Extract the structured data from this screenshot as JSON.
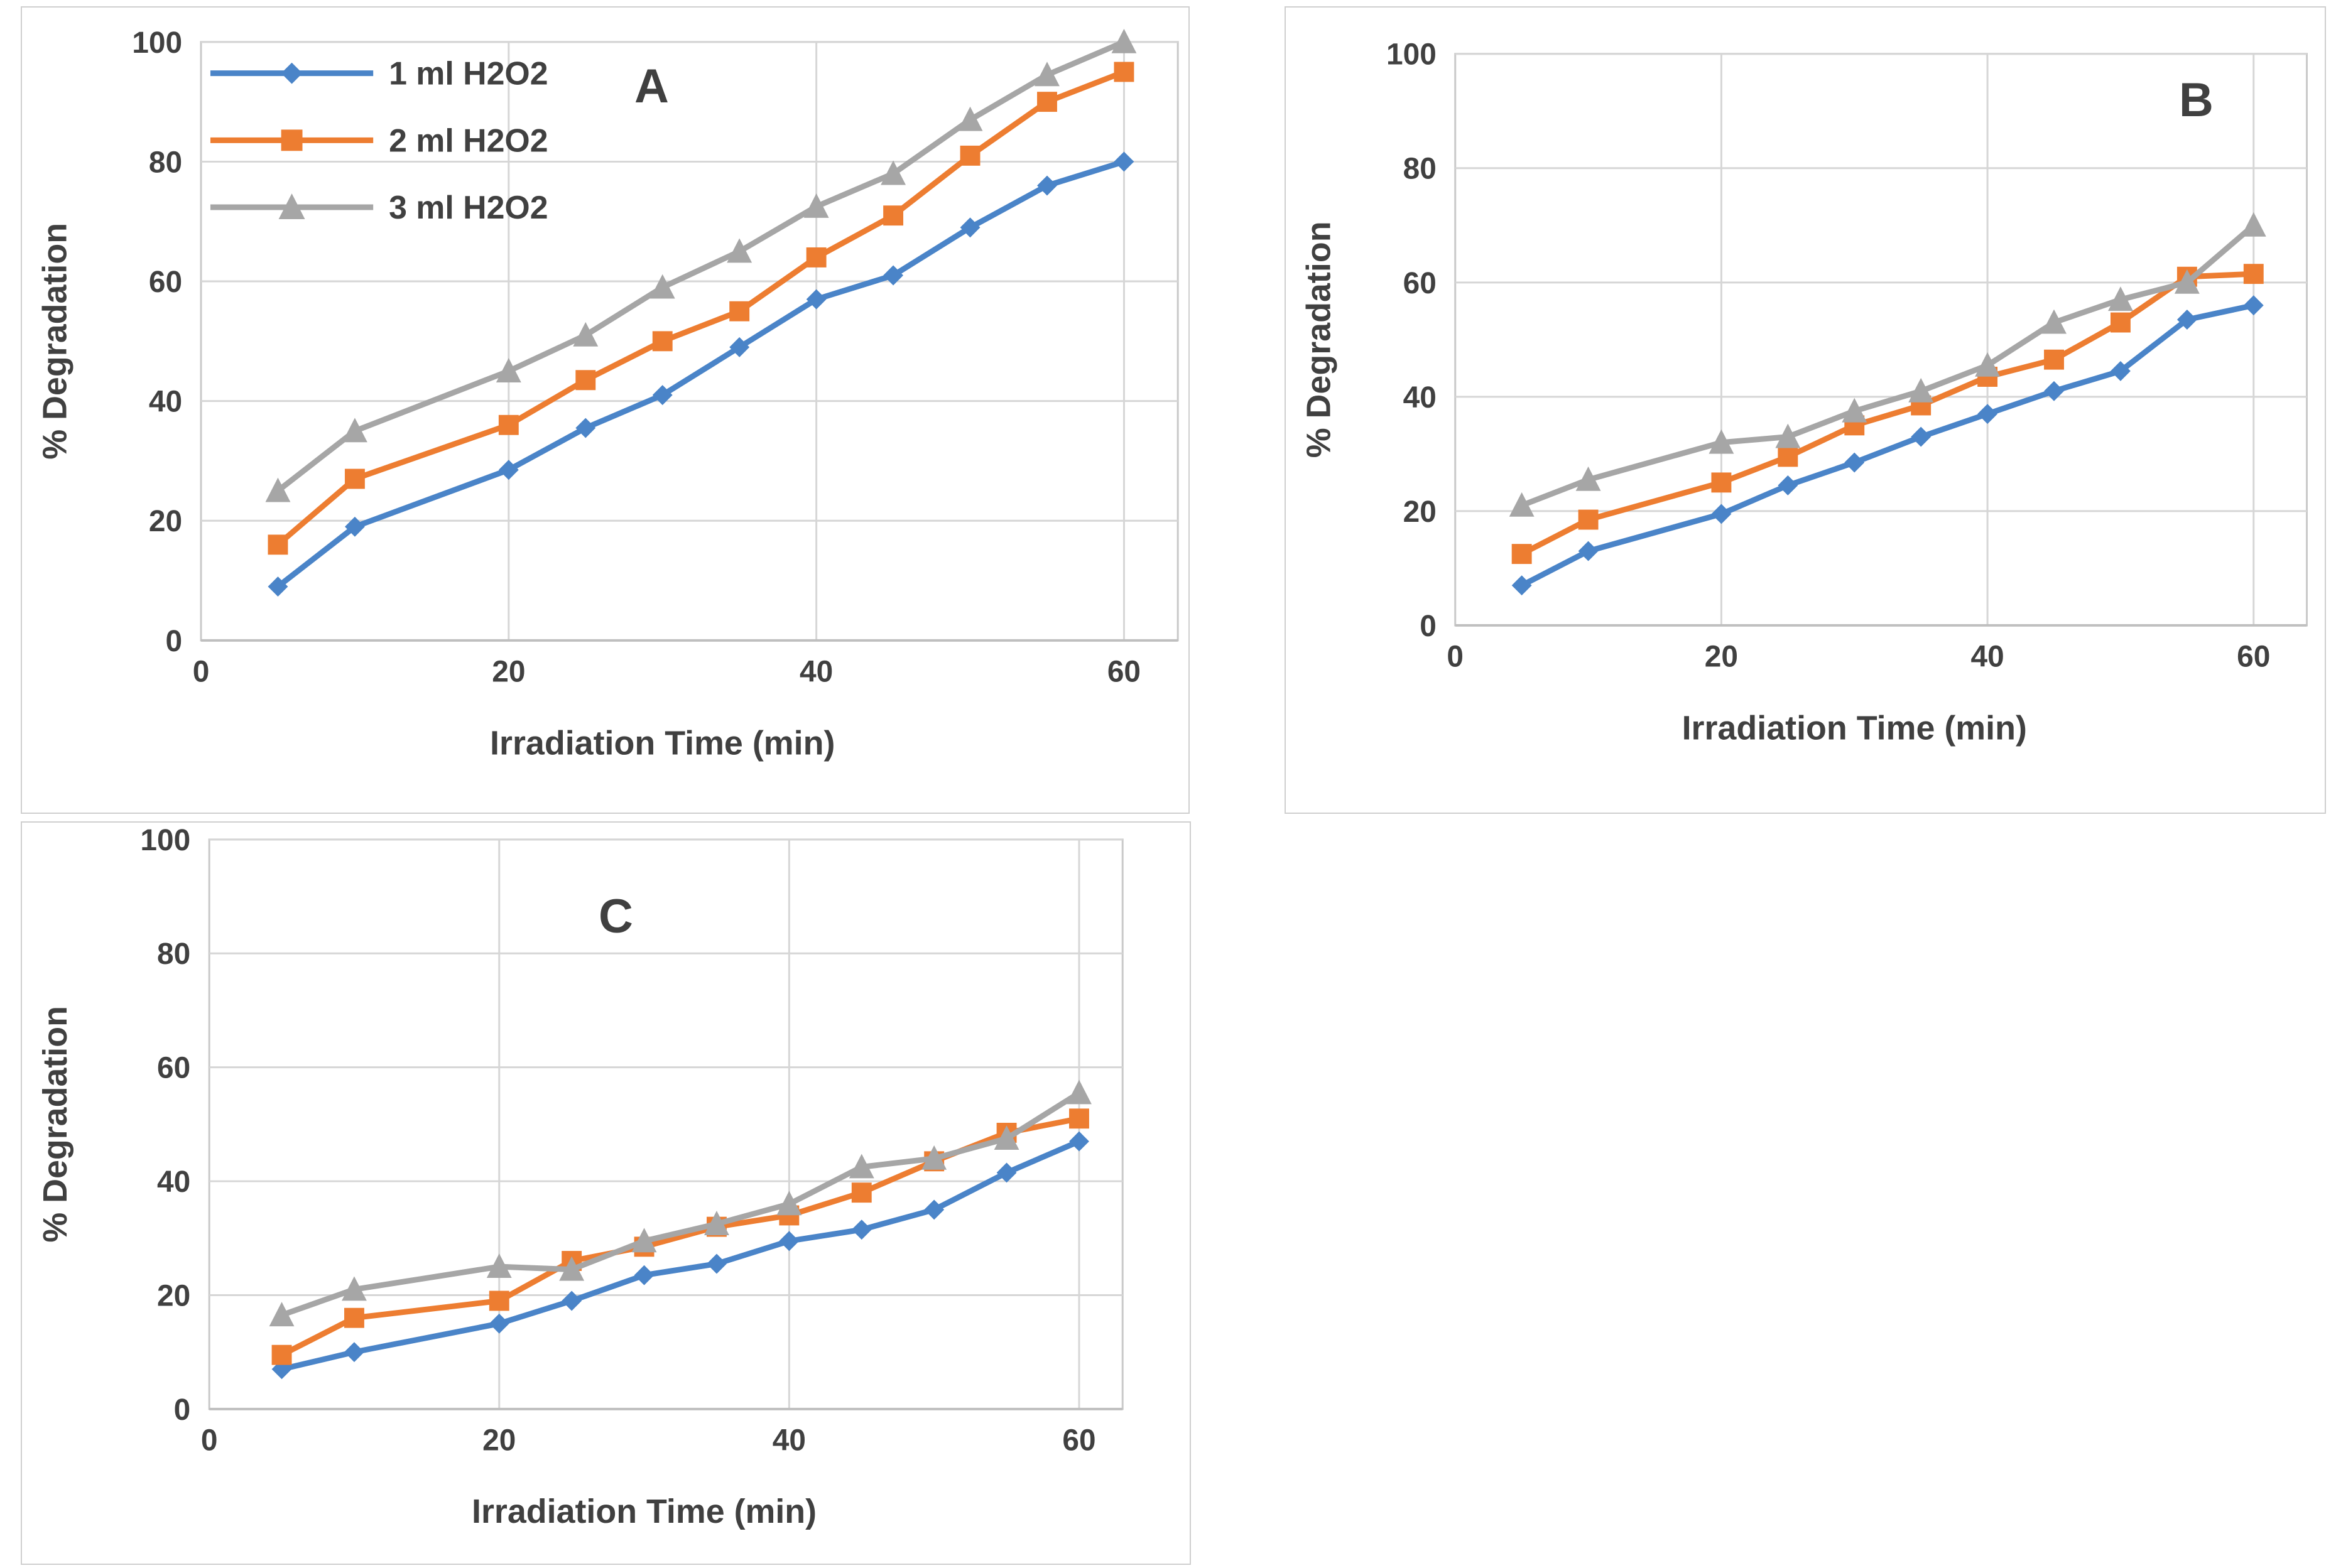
{
  "page": {
    "background": "#ffffff"
  },
  "colors": {
    "series_1ml": "#4a84c8",
    "series_2ml": "#ed7d31",
    "series_3ml": "#a6a6a6",
    "gridline": "#d6d6d6",
    "plot_border": "#c9c9c9",
    "axis_line": "#bfbfbf",
    "text": "#404040"
  },
  "axes": {
    "x_title": "Irradiation Time (min)",
    "y_title": "% Degradation",
    "x_ticks": [
      0,
      20,
      40,
      60
    ],
    "y_ticks": [
      0,
      20,
      40,
      60,
      80,
      100
    ],
    "y_max": 100
  },
  "legend": {
    "items": [
      "1 ml H2O2",
      "2 ml H2O2",
      "3 ml H2O2"
    ]
  },
  "chart_data": [
    {
      "panel": "A",
      "type": "line",
      "title": "",
      "xlabel": "Irradiation Time (min)",
      "ylabel": "% Degradation",
      "xlim": [
        0,
        63.5
      ],
      "ylim": [
        0,
        100
      ],
      "grid": true,
      "legend_position": "top-left-inside",
      "x": [
        5,
        10,
        20,
        25,
        30,
        35,
        40,
        45,
        50,
        55,
        60
      ],
      "series": [
        {
          "name": "1 ml H2O2",
          "marker": "diamond",
          "color_key": "series_1ml",
          "values": [
            9,
            19,
            28.5,
            35.5,
            41,
            49,
            57,
            61,
            69,
            76,
            80
          ]
        },
        {
          "name": "2 ml H2O2",
          "marker": "square",
          "color_key": "series_2ml",
          "values": [
            16,
            27,
            36,
            43.5,
            50,
            55,
            64,
            71,
            81,
            90,
            95
          ]
        },
        {
          "name": "3 ml H2O2",
          "marker": "triangle",
          "color_key": "series_3ml",
          "values": [
            25,
            35,
            45,
            51,
            59,
            65,
            72.5,
            78,
            87,
            94.5,
            100
          ]
        }
      ]
    },
    {
      "panel": "B",
      "type": "line",
      "title": "",
      "xlabel": "Irradiation Time (min)",
      "ylabel": "% Degradation",
      "xlim": [
        0,
        64
      ],
      "ylim": [
        0,
        100
      ],
      "grid": true,
      "legend_position": "none",
      "x": [
        5,
        10,
        20,
        25,
        30,
        35,
        40,
        45,
        50,
        55,
        60
      ],
      "series": [
        {
          "name": "1 ml H2O2",
          "marker": "diamond",
          "color_key": "series_1ml",
          "values": [
            7,
            13,
            19.5,
            24.5,
            28.5,
            33,
            37,
            41,
            44.5,
            53.5,
            56
          ]
        },
        {
          "name": "2 ml H2O2",
          "marker": "square",
          "color_key": "series_2ml",
          "values": [
            12.5,
            18.5,
            25,
            29.5,
            35,
            38.5,
            43.5,
            46.5,
            53,
            61,
            61.5
          ]
        },
        {
          "name": "3 ml H2O2",
          "marker": "triangle",
          "color_key": "series_3ml",
          "values": [
            21,
            25.5,
            32,
            33,
            37.5,
            41,
            45.5,
            53,
            57,
            60,
            70
          ]
        }
      ]
    },
    {
      "panel": "C",
      "type": "line",
      "title": "",
      "xlabel": "Irradiation Time (min)",
      "ylabel": "% Degradation",
      "xlim": [
        0,
        63
      ],
      "ylim": [
        0,
        100
      ],
      "grid": true,
      "legend_position": "none",
      "x": [
        5,
        10,
        20,
        25,
        30,
        35,
        40,
        45,
        50,
        55,
        60
      ],
      "series": [
        {
          "name": "1 ml H2O2",
          "marker": "diamond",
          "color_key": "series_1ml",
          "values": [
            7,
            10,
            15,
            19,
            23.5,
            25.5,
            29.5,
            31.5,
            35,
            41.5,
            47
          ]
        },
        {
          "name": "2 ml H2O2",
          "marker": "square",
          "color_key": "series_2ml",
          "values": [
            9.5,
            16,
            19,
            26,
            28.5,
            32,
            34,
            38,
            43.5,
            48.5,
            51
          ]
        },
        {
          "name": "3 ml H2O2",
          "marker": "triangle",
          "color_key": "series_3ml",
          "values": [
            16.5,
            21,
            25,
            24.5,
            29.5,
            32.5,
            36,
            42.5,
            44,
            47.5,
            55.5
          ]
        }
      ]
    }
  ]
}
